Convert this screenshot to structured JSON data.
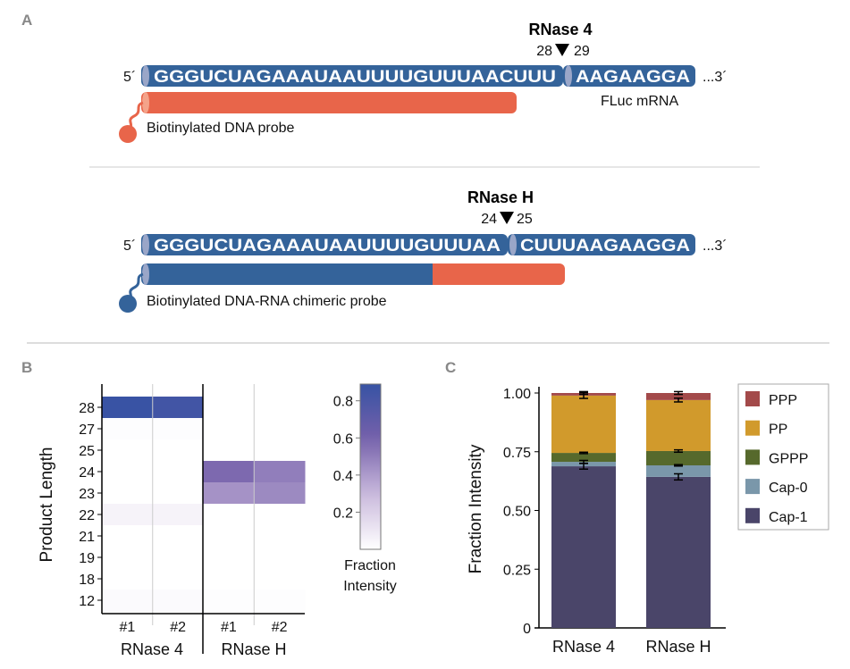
{
  "panels": {
    "a": "A",
    "b": "B",
    "c": "C"
  },
  "diagram": {
    "top": {
      "enzyme": "RNase 4",
      "cut_left": "28",
      "cut_right": "29",
      "five_prime": "5´",
      "seq_left": "GGGUCUAGAAAUAAUUUUGUUUAACUUU",
      "seq_right": "AAGAAGGA",
      "three_prime": "...3´",
      "mrna_label": "FLuc mRNA",
      "probe_label": "Biotinylated DNA probe"
    },
    "bottom": {
      "enzyme": "RNase H",
      "cut_left": "24",
      "cut_right": "25",
      "five_prime": "5´",
      "seq_left": "GGGUCUAGAAAUAAUUUUGUUUAA",
      "seq_right": "CUUUAAGAAGGA",
      "three_prime": "...3´",
      "probe_label": "Biotinylated DNA-RNA chimeric probe"
    },
    "colors": {
      "rna": "#34639a",
      "dna_probe": "#e8654a",
      "cap": "#9aa6c8"
    }
  },
  "chart_data": [
    {
      "type": "heatmap",
      "ylabel": "Product Length",
      "rows": [
        "28",
        "27",
        "25",
        "24",
        "23",
        "22",
        "21",
        "19",
        "18",
        "12"
      ],
      "groups": [
        "RNase 4",
        "RNase H"
      ],
      "columns": [
        "#1",
        "#2",
        "#1",
        "#2"
      ],
      "values": [
        [
          0.88,
          0.84,
          0,
          0
        ],
        [
          0.01,
          0.01,
          0,
          0
        ],
        [
          0,
          0,
          0,
          0
        ],
        [
          0,
          0,
          0.57,
          0.5
        ],
        [
          0,
          0,
          0.43,
          0.46
        ],
        [
          0.05,
          0.05,
          0,
          0
        ],
        [
          0,
          0,
          0,
          0
        ],
        [
          0,
          0,
          0,
          0
        ],
        [
          0,
          0,
          0,
          0
        ],
        [
          0.02,
          0.02,
          0.01,
          0.01
        ]
      ],
      "colorbar": {
        "label_line1": "Fraction",
        "label_line2": "Intensity",
        "ticks": [
          "0.8",
          "0.6",
          "0.4",
          "0.2"
        ],
        "range": [
          0,
          0.89
        ]
      }
    },
    {
      "type": "bar",
      "stacked": true,
      "ylabel": "Fraction Intensity",
      "ylim": [
        0,
        1
      ],
      "yticks": [
        "0",
        "0.25",
        "0.50",
        "0.75",
        "1.00"
      ],
      "categories": [
        "RNase 4",
        "RNase H"
      ],
      "series": [
        {
          "name": "Cap-1",
          "color": "#4a4569",
          "values": [
            0.688,
            0.643
          ],
          "err": [
            0.012,
            0.013
          ]
        },
        {
          "name": "Cap-0",
          "color": "#7a97aa",
          "values": [
            0.019,
            0.049
          ],
          "err": [
            0.006,
            0.003
          ]
        },
        {
          "name": "GPPP",
          "color": "#56692c",
          "values": [
            0.038,
            0.061
          ],
          "err": [
            0.003,
            0.005
          ]
        },
        {
          "name": "PP",
          "color": "#d19a2c",
          "values": [
            0.244,
            0.217
          ],
          "err": [
            0.012,
            0.008
          ]
        },
        {
          "name": "PPP",
          "color": "#a34a4a",
          "values": [
            0.011,
            0.03
          ],
          "err": [
            0.006,
            0.006
          ]
        }
      ],
      "legend": [
        "PPP",
        "PP",
        "GPPP",
        "Cap-0",
        "Cap-1"
      ],
      "legend_position": "right"
    }
  ]
}
